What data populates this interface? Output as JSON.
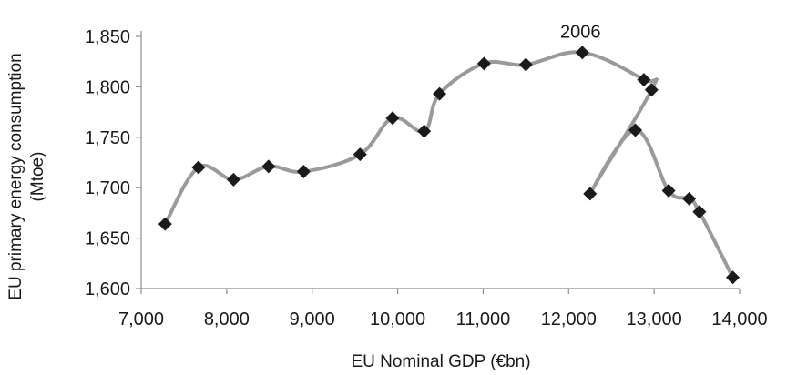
{
  "chart_data": {
    "type": "line",
    "xlabel": "EU Nominal GDP (€bn)",
    "ylabel_lines": [
      "EU primary energy consumption",
      "(Mtoe)"
    ],
    "xlim": [
      7000,
      14000
    ],
    "ylim": [
      1600,
      1850
    ],
    "xticks": [
      7000,
      8000,
      9000,
      10000,
      11000,
      12000,
      13000,
      14000
    ],
    "xtick_labels": [
      "7,000",
      "8,000",
      "9,000",
      "10,000",
      "11,000",
      "12,000",
      "13,000",
      "14,000"
    ],
    "yticks": [
      1600,
      1650,
      1700,
      1750,
      1800,
      1850
    ],
    "ytick_labels": [
      "1,600",
      "1,650",
      "1,700",
      "1,750",
      "1,800",
      "1,850"
    ],
    "grid": false,
    "line_color": "#9a9a9a",
    "marker_color": "#1a1a1a",
    "marker": "diamond",
    "points": [
      {
        "x": 7280,
        "y": 1664
      },
      {
        "x": 7670,
        "y": 1720
      },
      {
        "x": 8080,
        "y": 1708
      },
      {
        "x": 8490,
        "y": 1721
      },
      {
        "x": 8900,
        "y": 1716
      },
      {
        "x": 9560,
        "y": 1733
      },
      {
        "x": 9940,
        "y": 1769
      },
      {
        "x": 10310,
        "y": 1756
      },
      {
        "x": 10490,
        "y": 1793
      },
      {
        "x": 11010,
        "y": 1823
      },
      {
        "x": 11500,
        "y": 1822
      },
      {
        "x": 12160,
        "y": 1834
      },
      {
        "x": 12880,
        "y": 1807
      },
      {
        "x": 12970,
        "y": 1797
      },
      {
        "x": 12250,
        "y": 1694
      },
      {
        "x": 12780,
        "y": 1757
      },
      {
        "x": 13170,
        "y": 1697
      },
      {
        "x": 13410,
        "y": 1689
      },
      {
        "x": 13530,
        "y": 1676
      },
      {
        "x": 13920,
        "y": 1611
      }
    ],
    "annotations": [
      {
        "text": "2006",
        "x": 12160,
        "y": 1834
      }
    ]
  }
}
